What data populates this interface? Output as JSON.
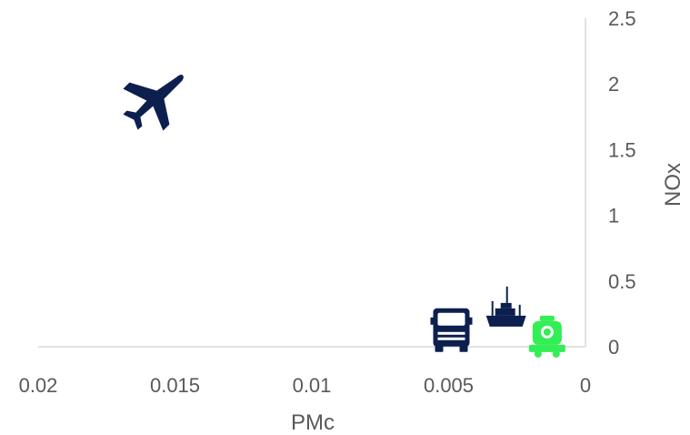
{
  "chart_data": {
    "type": "scatter",
    "title": "",
    "xlabel": "PMc",
    "ylabel": "NOx",
    "x_reversed": true,
    "xlim": [
      0,
      0.02
    ],
    "ylim": [
      0,
      2.5
    ],
    "x_ticks": [
      "0.02",
      "0.015",
      "0.01",
      "0.005",
      "0"
    ],
    "x_tick_values": [
      0.02,
      0.015,
      0.01,
      0.005,
      0
    ],
    "y_ticks": [
      "0",
      "0.5",
      "1",
      "1.5",
      "2",
      "2.5"
    ],
    "y_tick_values": [
      0,
      0.5,
      1,
      1.5,
      2,
      2.5
    ],
    "grid": false,
    "legend": "none",
    "points": [
      {
        "marker": "airplane-icon",
        "x": 0.0158,
        "y": 1.9,
        "color": "#0d1f4f"
      },
      {
        "marker": "truck-icon",
        "x": 0.0049,
        "y": 0.14,
        "color": "#0d1f4f"
      },
      {
        "marker": "ship-icon",
        "x": 0.0029,
        "y": 0.25,
        "color": "#0d1f4f"
      },
      {
        "marker": "train-icon",
        "x": 0.0014,
        "y": 0.07,
        "color": "#33ee55"
      }
    ]
  }
}
